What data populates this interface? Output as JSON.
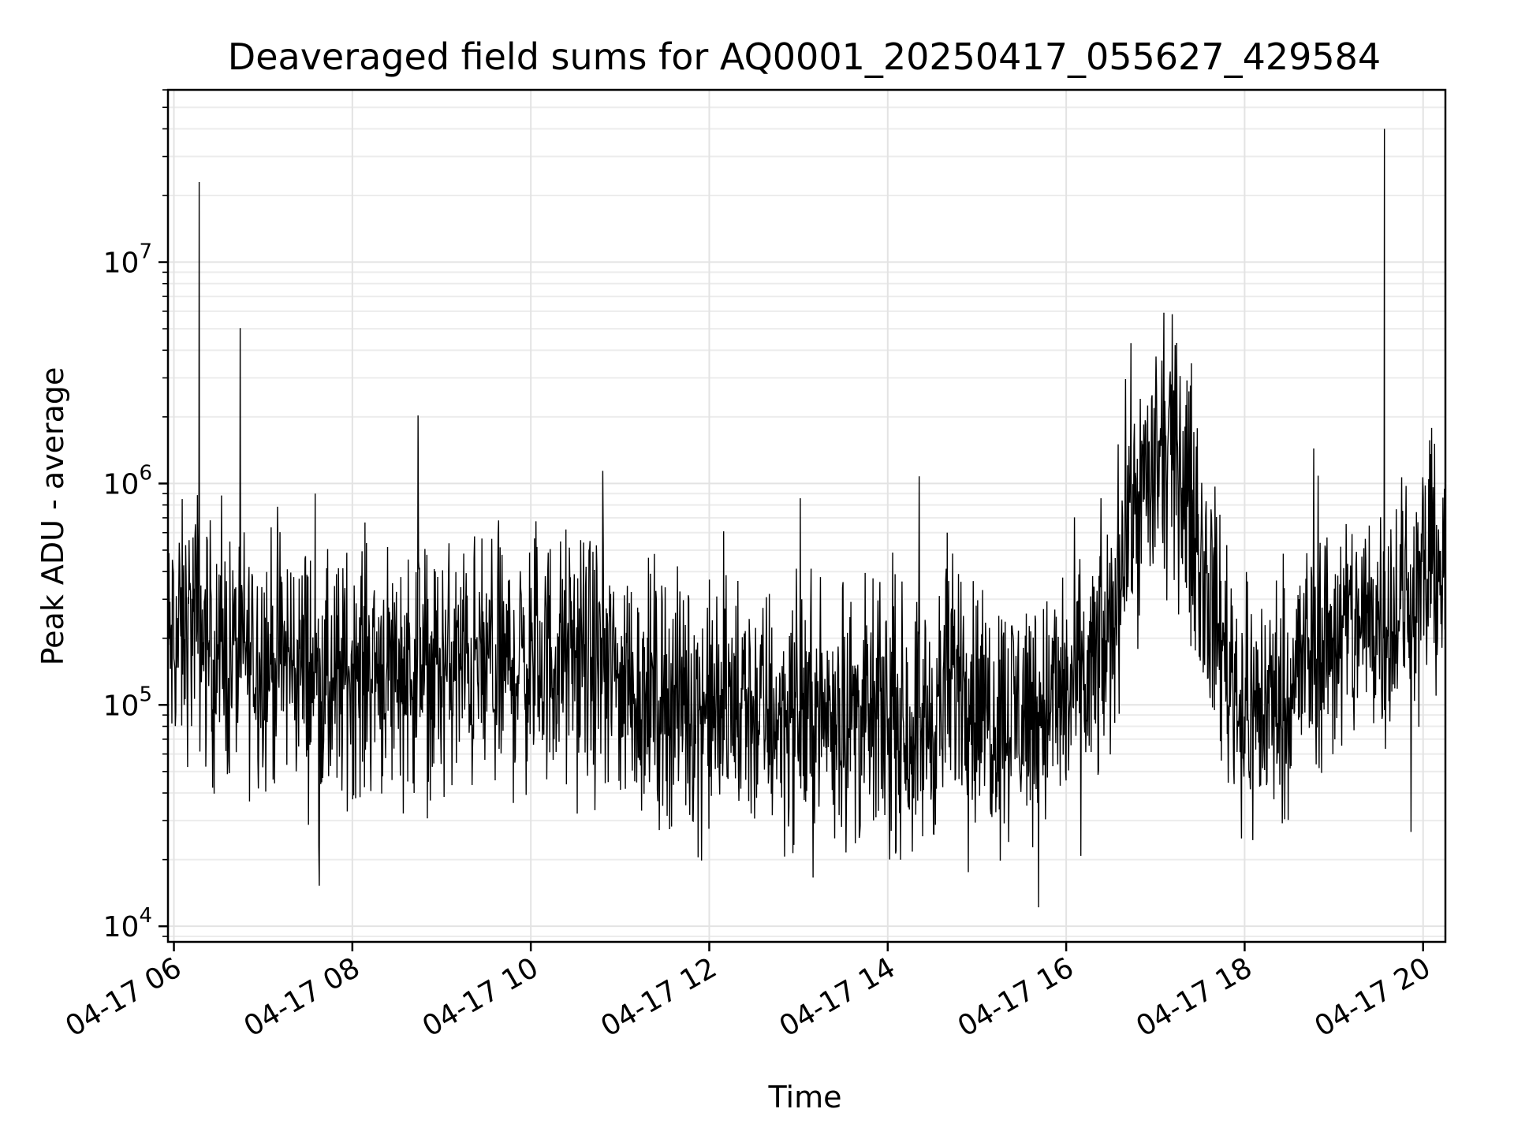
{
  "chart_data": {
    "type": "line",
    "title": "Deaveraged field sums for AQ0001_20250417_055627_429584",
    "xlabel": "Time",
    "ylabel": "Peak ADU - average",
    "x_tick_labels": [
      "04-17 06",
      "04-17 08",
      "04-17 10",
      "04-17 12",
      "04-17 14",
      "04-17 16",
      "04-17 18",
      "04-17 20"
    ],
    "y_tick_labels": [
      {
        "base": "10",
        "exp": "4"
      },
      {
        "base": "10",
        "exp": "5"
      },
      {
        "base": "10",
        "exp": "6"
      },
      {
        "base": "10",
        "exp": "7"
      }
    ],
    "xlim": [
      "2025-04-17 05:56",
      "2025-04-17 20:15"
    ],
    "ylim": [
      8500,
      60000000
    ],
    "yscale": "log",
    "grid": true,
    "line_color": "#000000",
    "series": [
      {
        "x": [
          "2025-04-17 05:56",
          "2025-04-17 06:10",
          "2025-04-17 06:15",
          "06:17",
          "06:20",
          "06:30",
          "06:45",
          "07:00",
          "07:15",
          "07:30",
          "07:35",
          "07:45",
          "08:00",
          "08:15",
          "08:30",
          "08:45",
          "09:00",
          "09:15",
          "09:30",
          "09:45",
          "10:00",
          "10:15",
          "10:30",
          "10:45",
          "11:00",
          "11:15",
          "11:30",
          "11:45",
          "12:00",
          "12:15",
          "12:30",
          "12:45",
          "13:00",
          "13:15",
          "13:30",
          "13:45",
          "14:00",
          "14:15",
          "14:30",
          "14:40",
          "14:50",
          "15:00",
          "15:15",
          "15:30",
          "15:45",
          "16:00",
          "16:15",
          "16:30",
          "16:40",
          "16:50",
          "17:00",
          "17:10",
          "17:20",
          "17:30",
          "17:40",
          "17:50",
          "18:00",
          "18:15",
          "18:30",
          "18:45",
          "19:00",
          "19:15",
          "19:30",
          "19:34",
          "19:40",
          "19:50",
          "20:00",
          "20:10",
          "20:15"
        ],
        "y": [
          180000,
          220000,
          260000,
          23000000,
          200000,
          160000,
          170000,
          165000,
          160000,
          150000,
          900000,
          110000,
          150000,
          155000,
          150000,
          145000,
          140000,
          150000,
          145000,
          150000,
          155000,
          160000,
          160000,
          150000,
          130000,
          115000,
          110000,
          105000,
          95000,
          100000,
          95000,
          90000,
          92000,
          90000,
          95000,
          85000,
          90000,
          80000,
          85000,
          600000,
          150000,
          100000,
          90000,
          95000,
          100000,
          110000,
          130000,
          200000,
          700000,
          900000,
          1100000,
          1400000,
          1000000,
          500000,
          250000,
          150000,
          90000,
          100000,
          120000,
          180000,
          200000,
          230000,
          260000,
          40000000,
          260000,
          300000,
          350000,
          500000,
          300000
        ]
      }
    ]
  }
}
